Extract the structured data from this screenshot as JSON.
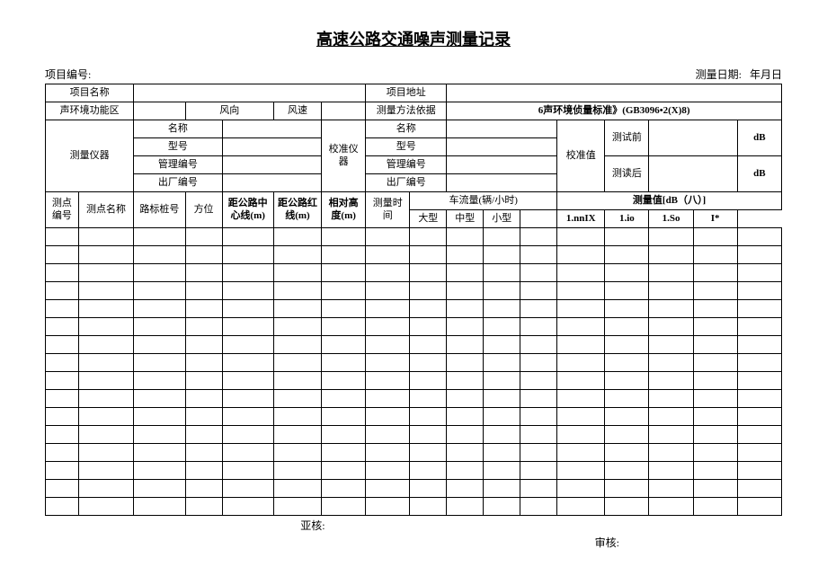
{
  "title": "高速公路交通噪声测量记录",
  "meta": {
    "proj_no_label": "项目编号:",
    "date_label": "测量日期:",
    "date_value": "年月日"
  },
  "labels": {
    "project_name": "项目名称",
    "project_address": "项目地址",
    "env_zone": "声环境功能区",
    "wind_dir": "风向",
    "wind_speed": "风速",
    "method_basis": "测量方法依据",
    "standard": "6声环境侦量标准》(GB3096•2(X)8)",
    "instrument": "测量仪器",
    "calib_instrument": "校准仪器",
    "calib_value": "校准值",
    "name": "名称",
    "model": "型号",
    "mgmt_no": "管理编号",
    "factory_no": "出厂编号",
    "before_test": "测试前",
    "after_read": "测读后",
    "dB": "dB",
    "point_no": "测点编号",
    "point_name": "测点名称",
    "stake_no": "路标桩号",
    "direction": "方位",
    "dist_center": "距公路中心线(m)",
    "dist_red": "距公路红线(m)",
    "rel_height": "相对高度(m)",
    "meas_time": "测量时间",
    "traffic_flow": "车流量(辆/小时)",
    "meas_value": "测量值[dB（八）]",
    "large": "大型",
    "medium": "中型",
    "small": "小型",
    "c1": "1.nnIX",
    "c2": "1.io",
    "c3": "1.So",
    "c4": "I*"
  },
  "footer": {
    "yahe": "亚核:",
    "shenghe": "审核:"
  },
  "blank_rows": 16,
  "style": {
    "border_color": "#000000",
    "bg": "#ffffff",
    "title_fontsize": 18,
    "cell_fontsize": 11
  }
}
